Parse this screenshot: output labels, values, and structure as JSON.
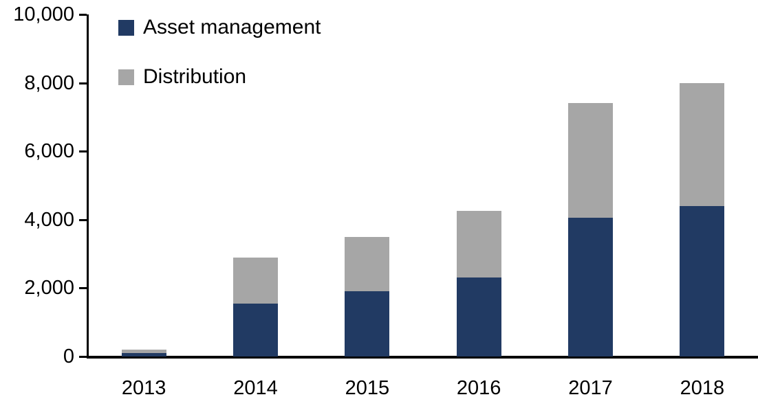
{
  "chart_data": {
    "type": "bar",
    "stacked": true,
    "title": "",
    "xlabel": "",
    "ylabel": "",
    "categories": [
      "2013",
      "2014",
      "2015",
      "2016",
      "2017",
      "2018"
    ],
    "series": [
      {
        "name": "Asset management",
        "color": "#213A63",
        "values": [
          100,
          1550,
          1900,
          2300,
          4050,
          4400
        ]
      },
      {
        "name": "Distribution",
        "color": "#A6A6A6",
        "values": [
          100,
          1350,
          1600,
          1950,
          3350,
          3600
        ]
      }
    ],
    "totals": [
      200,
      2900,
      3500,
      4250,
      7400,
      8000
    ],
    "ylim": [
      0,
      10000
    ],
    "ytick_values": [
      0,
      2000,
      4000,
      6000,
      8000,
      10000
    ],
    "ytick_labels": [
      "0",
      "2,000",
      "4,000",
      "6,000",
      "8,000",
      "10,000"
    ],
    "grid": false,
    "legend_position": "top-left-inside",
    "axis_color": "#000000",
    "background_color": "#FFFFFF"
  }
}
